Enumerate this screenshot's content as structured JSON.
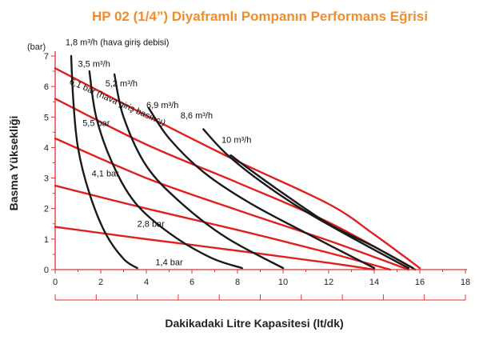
{
  "chart_data": {
    "type": "line",
    "title": "HP 02 (1/4”) Diyaframlı Pompanın Performans Eğrisi",
    "xlabel": "Dakikadaki Litre Kapasitesi (lt/dk)",
    "ylabel": "Basma Yüksekliği",
    "yunit": "(bar)",
    "xlim": [
      0,
      18
    ],
    "ylim": [
      0,
      7
    ],
    "xticks": [
      "0",
      "2",
      "4",
      "6",
      "8",
      "10",
      "12",
      "14",
      "16",
      "18"
    ],
    "yticks": [
      "0",
      "1",
      "2",
      "3",
      "4",
      "5",
      "6",
      "7"
    ],
    "colors": {
      "air_pressure": "#e02020",
      "air_flow": "#1a1a1a",
      "axis": "#e03030",
      "title": "#f28c2b"
    },
    "series": [
      {
        "name": "1,4 bar",
        "kind": "air_pressure",
        "x": [
          0,
          4,
          8,
          12,
          14
        ],
        "y": [
          1.4,
          1.0,
          0.62,
          0.22,
          0.0
        ]
      },
      {
        "name": "2,8 bar",
        "kind": "air_pressure",
        "x": [
          0,
          4,
          8,
          12,
          14.7
        ],
        "y": [
          2.75,
          2.0,
          1.3,
          0.55,
          0.0
        ]
      },
      {
        "name": "4,1 bar",
        "kind": "air_pressure",
        "x": [
          0,
          4,
          8,
          12,
          15.5
        ],
        "y": [
          4.3,
          3.0,
          1.95,
          0.95,
          0.0
        ]
      },
      {
        "name": "5,5 bar",
        "kind": "air_pressure",
        "x": [
          0,
          4,
          8,
          12,
          15.8
        ],
        "y": [
          5.6,
          4.1,
          2.85,
          1.55,
          0.0
        ]
      },
      {
        "name": "6,1 bar (hava giriş basıncı)",
        "kind": "air_pressure",
        "x": [
          0,
          4,
          8,
          12,
          14,
          16
        ],
        "y": [
          6.6,
          5.05,
          3.55,
          2.15,
          1.15,
          0.05
        ]
      },
      {
        "name": "1,8 m³/h (hava giriş debisi)",
        "kind": "air_flow",
        "x": [
          0.7,
          0.8,
          1.0,
          1.5,
          2.2,
          3.0,
          3.6
        ],
        "y": [
          7.0,
          5.5,
          4.0,
          2.5,
          1.2,
          0.35,
          0.05
        ]
      },
      {
        "name": "3,5 m³/h",
        "kind": "air_flow",
        "x": [
          1.5,
          1.8,
          2.5,
          3.5,
          5.0,
          6.8,
          8.2
        ],
        "y": [
          6.5,
          5.0,
          3.5,
          2.2,
          1.2,
          0.4,
          0.05
        ]
      },
      {
        "name": "5,2 m³/h",
        "kind": "air_flow",
        "x": [
          2.6,
          3.0,
          4.0,
          5.5,
          7.5,
          10.0
        ],
        "y": [
          6.4,
          5.0,
          3.4,
          2.2,
          1.05,
          0.05
        ]
      },
      {
        "name": "6,9 m³/h",
        "kind": "air_flow",
        "x": [
          4.1,
          5.0,
          6.5,
          8.5,
          11.0,
          14.0
        ],
        "y": [
          5.3,
          4.3,
          3.2,
          2.2,
          1.2,
          0.05
        ]
      },
      {
        "name": "8,6 m³/h",
        "kind": "air_flow",
        "x": [
          6.5,
          7.5,
          9.0,
          11.0,
          13.5,
          15.5
        ],
        "y": [
          4.6,
          3.8,
          2.9,
          1.9,
          0.85,
          0.05
        ]
      },
      {
        "name": "10 m³/h",
        "kind": "air_flow",
        "x": [
          7.7,
          8.5,
          10.0,
          12.0,
          14.0,
          15.7
        ],
        "y": [
          3.75,
          3.3,
          2.5,
          1.5,
          0.75,
          0.05
        ]
      }
    ],
    "annotations": [
      {
        "text": "1,8 m³/h (hava giriş debisi)",
        "x": 0.45,
        "y": 7.35
      },
      {
        "text": "3,5 m³/h",
        "x": 1.0,
        "y": 6.65
      },
      {
        "text": "5,2 m³/h",
        "x": 2.2,
        "y": 6.0
      },
      {
        "text": "6,1 bar (hava giriş basıncı)",
        "x": 0.6,
        "y": 6.1
      },
      {
        "text": "6,9 m³/h",
        "x": 4.0,
        "y": 5.3
      },
      {
        "text": "8,6 m³/h",
        "x": 5.5,
        "y": 4.95
      },
      {
        "text": "5,5 bar",
        "x": 1.2,
        "y": 4.7
      },
      {
        "text": "10 m³/h",
        "x": 7.3,
        "y": 4.15
      },
      {
        "text": "4,1 bar",
        "x": 1.6,
        "y": 3.05
      },
      {
        "text": "2,8 bar",
        "x": 3.6,
        "y": 1.4
      },
      {
        "text": "1,4 bar",
        "x": 4.4,
        "y": 0.15
      }
    ],
    "grid": false,
    "legend": "none"
  }
}
